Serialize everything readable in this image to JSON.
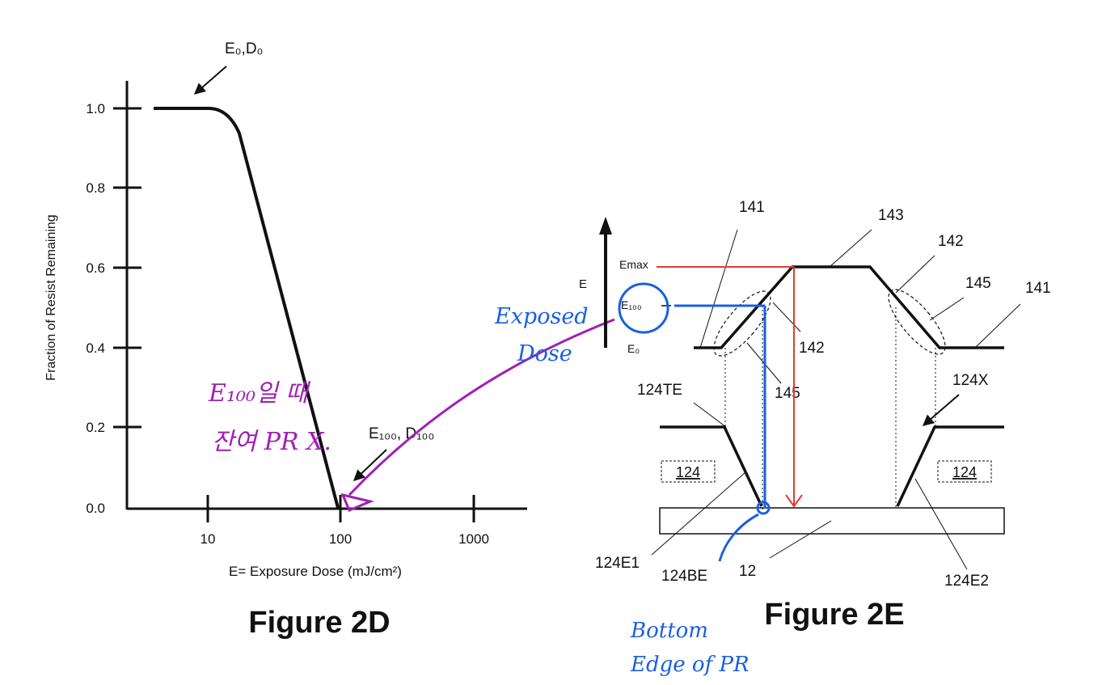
{
  "colors": {
    "ink": "#111111",
    "red_annotation": "#e23b2e",
    "blue_annotation": "#1a5fe0",
    "purple_annotation": "#a020b4"
  },
  "figure_2d": {
    "caption": "Figure 2D",
    "y_axis_label": "Fraction of Resist Remaining",
    "x_axis_label": "E= Exposure Dose (mJ/cm²)",
    "y_ticks": [
      "1.0",
      "0.8",
      "0.6",
      "0.4",
      "0.2",
      "0.0"
    ],
    "x_ticks": [
      "10",
      "100",
      "1000"
    ],
    "label_e0": "E₀,D₀",
    "label_e100": "E₁₀₀, D₁₀₀",
    "handwriting_purple": [
      "E₁₀₀일 때",
      "잔여 PR X."
    ]
  },
  "figure_2e": {
    "caption": "Figure 2E",
    "axis_label": "E",
    "level_emax": "Emax",
    "level_e100": "E₁₀₀",
    "level_e0": "E₀",
    "refs": {
      "r141_left": "141",
      "r143": "143",
      "r142_top": "142",
      "r145_right": "145",
      "r141_right": "141",
      "r142_mid": "142",
      "r145_mid": "145",
      "r124te": "124TE",
      "r124x": "124X",
      "r124_left": "124",
      "r124_right": "124",
      "r124e1": "124E1",
      "r124be": "124BE",
      "r12": "12",
      "r124e2": "124E2"
    },
    "handwriting_blue_top": [
      "Exposed",
      "Dose"
    ],
    "handwriting_blue_bottom": [
      "Bottom",
      "Edge of PR"
    ]
  }
}
